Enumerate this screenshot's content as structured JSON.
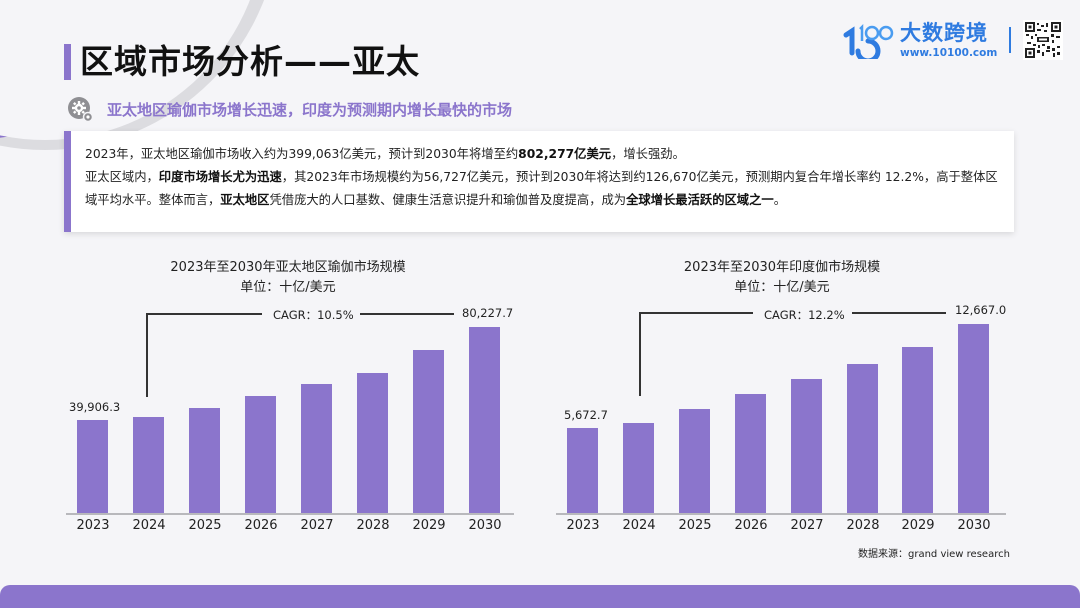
{
  "header": {
    "title": "区域市场分析——亚太",
    "subtitle": "亚太地区瑜伽市场增长迅速，印度为预测期内增长最快的市场",
    "subtitle_icon": "gear-icon"
  },
  "logo": {
    "mark": "1000",
    "name": "大数跨境",
    "url": "www.10100.com",
    "qr_icon": "qr-code-icon"
  },
  "summary": {
    "line1": {
      "a": "2023年，亚太地区瑜伽市场收入约为399,063亿美元，预计到2030年将增至约",
      "b": "802,277亿美元",
      "c": "，增长强劲。"
    },
    "line2": {
      "a": "亚太区域内，",
      "b": "印度市场增长尤为迅速",
      "c": "，其2023年市场规模约为56,727亿美元，预计到2030年将达到约126,670亿美元，预测期内复合年增长率约 12.2%，高于整体区域平均水平。整体而言，",
      "d": "亚太地区",
      "e": "凭借庞大的人口基数、健康生活意识提升和瑜伽普及度提高，成为",
      "f": "全球增长最活跃的区域之一",
      "g": "。"
    }
  },
  "chart_data": [
    {
      "type": "bar",
      "title": "2023年至2030年亚太地区瑜伽市场规模",
      "subtitle": "单位：十亿/美元",
      "categories": [
        "2023",
        "2024",
        "2025",
        "2026",
        "2027",
        "2028",
        "2029",
        "2030"
      ],
      "values": [
        39906.3,
        41200,
        45100,
        50300,
        55500,
        60300,
        70200,
        80227.7
      ],
      "data_labels": {
        "2023": "39,906.3",
        "2030": "80,227.7"
      },
      "annotation": "CAGR：10.5%",
      "bar_color": "#8b75cc",
      "xlabel": "",
      "ylabel": "",
      "grid": false
    },
    {
      "type": "bar",
      "title": "2023年至2030年印度伽市场规模",
      "subtitle": "单位：十亿/美元",
      "categories": [
        "2023",
        "2024",
        "2025",
        "2026",
        "2027",
        "2028",
        "2029",
        "2030"
      ],
      "values": [
        5672.7,
        6000,
        7000,
        8000,
        9000,
        10000,
        11100,
        12667.0
      ],
      "data_labels": {
        "2023": "5,672.7",
        "2030": "12,667.0"
      },
      "annotation": "CAGR：12.2%",
      "bar_color": "#8b75cc",
      "xlabel": "",
      "ylabel": "",
      "grid": false
    }
  ],
  "source": "数据来源：grand view research",
  "colors": {
    "accent": "#8b75cc",
    "brand_blue": "#2f7be0",
    "background": "#f5f5f8"
  }
}
